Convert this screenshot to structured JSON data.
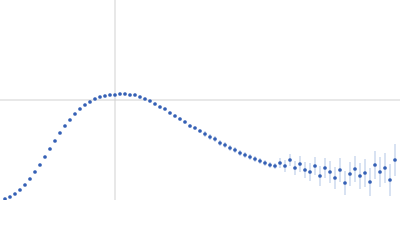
{
  "chart_data": {
    "type": "scatter",
    "color": "#3560b5",
    "error_color": "#9fb6e0",
    "xlim": [
      0,
      400
    ],
    "ylim": [
      0,
      200
    ],
    "xticks": [
      115
    ],
    "yticks": [
      100
    ],
    "grid": true,
    "x": [
      5,
      10,
      15,
      20,
      25,
      30,
      35,
      40,
      45,
      50,
      55,
      60,
      65,
      70,
      75,
      80,
      85,
      90,
      95,
      100,
      105,
      110,
      115,
      120,
      125,
      130,
      135,
      140,
      145,
      150,
      155,
      160,
      165,
      170,
      175,
      180,
      185,
      190,
      195,
      200,
      205,
      210,
      215,
      220,
      225,
      230,
      235,
      240,
      245,
      250,
      255,
      260,
      265,
      270,
      275,
      280,
      285,
      290,
      295,
      300,
      305,
      310,
      315,
      320,
      325,
      330,
      335,
      340,
      345,
      350,
      355,
      360,
      365,
      370,
      375,
      380,
      385,
      390,
      395
    ],
    "values": [
      1,
      3,
      6,
      10,
      15,
      21,
      28,
      35,
      43,
      51,
      59,
      67,
      74,
      80,
      86,
      91,
      95,
      98,
      101,
      103,
      104,
      105,
      105,
      106,
      106,
      105,
      105,
      103,
      101,
      99,
      96,
      93,
      91,
      87,
      84,
      81,
      78,
      74,
      72,
      69,
      66,
      63,
      61,
      57,
      55,
      52,
      50,
      47,
      45,
      43,
      41,
      39,
      37,
      35,
      34,
      37,
      34,
      40,
      32,
      36,
      30,
      28,
      34,
      24,
      32,
      28,
      22,
      30,
      17,
      26,
      31,
      24,
      27,
      18,
      35,
      28,
      32,
      20,
      40
    ],
    "errors": [
      0.5,
      0.5,
      0.5,
      0.5,
      0.5,
      0.5,
      0.5,
      0.5,
      0.5,
      0.5,
      0.5,
      0.5,
      0.5,
      0.5,
      0.5,
      0.5,
      0.5,
      0.5,
      0.5,
      0.5,
      1,
      1,
      1,
      1,
      1,
      1,
      1,
      1,
      1,
      1,
      1,
      1,
      1,
      1,
      1,
      1,
      1,
      1,
      1,
      1,
      3,
      3,
      3,
      3,
      3,
      3,
      3,
      3,
      3,
      3,
      3,
      3,
      3,
      3,
      3,
      5,
      6,
      6,
      7,
      8,
      8,
      9,
      9,
      10,
      10,
      11,
      11,
      12,
      12,
      12,
      13,
      13,
      14,
      14,
      14,
      15,
      15,
      16,
      16
    ]
  }
}
